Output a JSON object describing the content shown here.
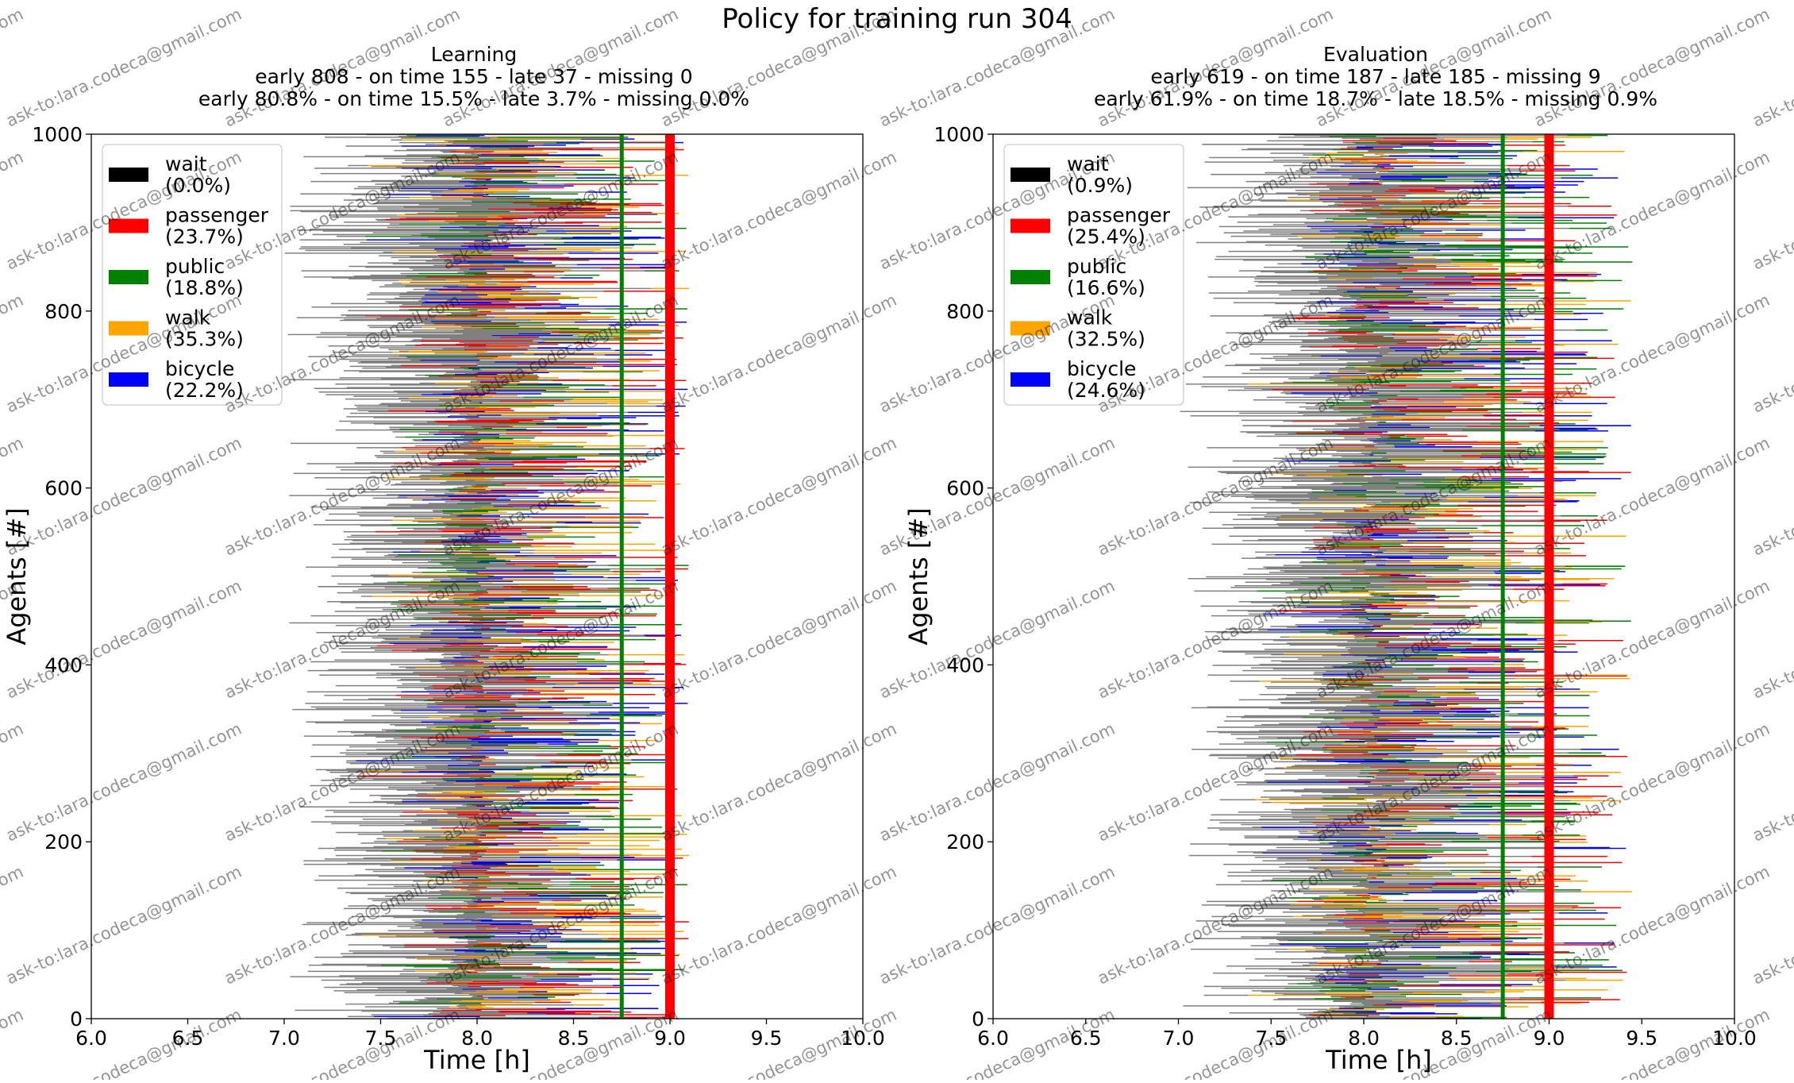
{
  "figure": {
    "suptitle": "Policy for training run 304",
    "watermark": "ask-to:lara.codeca@gmail.com"
  },
  "chart_data": [
    {
      "type": "bar",
      "orientation": "horizontal-timeline",
      "title": "Learning",
      "subtitle_counts": "early 808 - on time 155 - late 37 - missing 0",
      "subtitle_percent": "early 80.8% - on time 15.5% - late 3.7% - missing 0.0%",
      "xlabel": "Time [h]",
      "ylabel": "Agents [#]",
      "xlim": [
        6.0,
        10.0
      ],
      "ylim": [
        0,
        1000
      ],
      "xticks": [
        "6.0",
        "6.5",
        "7.0",
        "7.5",
        "8.0",
        "8.5",
        "9.0",
        "9.5",
        "10.0"
      ],
      "yticks": [
        "0",
        "200",
        "400",
        "600",
        "800",
        "1000"
      ],
      "reference_lines": [
        {
          "x": 8.75,
          "color": "#008000"
        },
        {
          "x": 9.0,
          "color": "#ff0000"
        }
      ],
      "legend": {
        "position": "upper-left",
        "entries": [
          {
            "name": "wait",
            "share": "(0.0%)",
            "color": "#000000"
          },
          {
            "name": "passenger",
            "share": "(23.7%)",
            "color": "#ff0000"
          },
          {
            "name": "public",
            "share": "(18.8%)",
            "color": "#008000"
          },
          {
            "name": "walk",
            "share": "(35.3%)",
            "color": "#ffa500"
          },
          {
            "name": "bicycle",
            "share": "(22.2%)",
            "color": "#0000ff"
          }
        ]
      },
      "gap_color": "#808080",
      "agents": 1000,
      "start_range_h": [
        7.0,
        8.0
      ],
      "arrival_range_h": [
        8.0,
        9.1
      ]
    },
    {
      "type": "bar",
      "orientation": "horizontal-timeline",
      "title": "Evaluation",
      "subtitle_counts": "early 619 - on time 187 - late 185 - missing 9",
      "subtitle_percent": "early 61.9% - on time 18.7% - late 18.5% - missing 0.9%",
      "xlabel": "Time [h]",
      "ylabel": "Agents [#]",
      "xlim": [
        6.0,
        10.0
      ],
      "ylim": [
        0,
        1000
      ],
      "xticks": [
        "6.0",
        "6.5",
        "7.0",
        "7.5",
        "8.0",
        "8.5",
        "9.0",
        "9.5",
        "10.0"
      ],
      "yticks": [
        "0",
        "200",
        "400",
        "600",
        "800",
        "1000"
      ],
      "reference_lines": [
        {
          "x": 8.75,
          "color": "#008000"
        },
        {
          "x": 9.0,
          "color": "#ff0000"
        }
      ],
      "legend": {
        "position": "upper-left",
        "entries": [
          {
            "name": "wait",
            "share": "(0.9%)",
            "color": "#000000"
          },
          {
            "name": "passenger",
            "share": "(25.4%)",
            "color": "#ff0000"
          },
          {
            "name": "public",
            "share": "(16.6%)",
            "color": "#008000"
          },
          {
            "name": "walk",
            "share": "(32.5%)",
            "color": "#ffa500"
          },
          {
            "name": "bicycle",
            "share": "(24.6%)",
            "color": "#0000ff"
          }
        ]
      },
      "gap_color": "#808080",
      "agents": 1000,
      "start_range_h": [
        7.0,
        8.1
      ],
      "arrival_range_h": [
        8.0,
        9.45
      ]
    }
  ]
}
